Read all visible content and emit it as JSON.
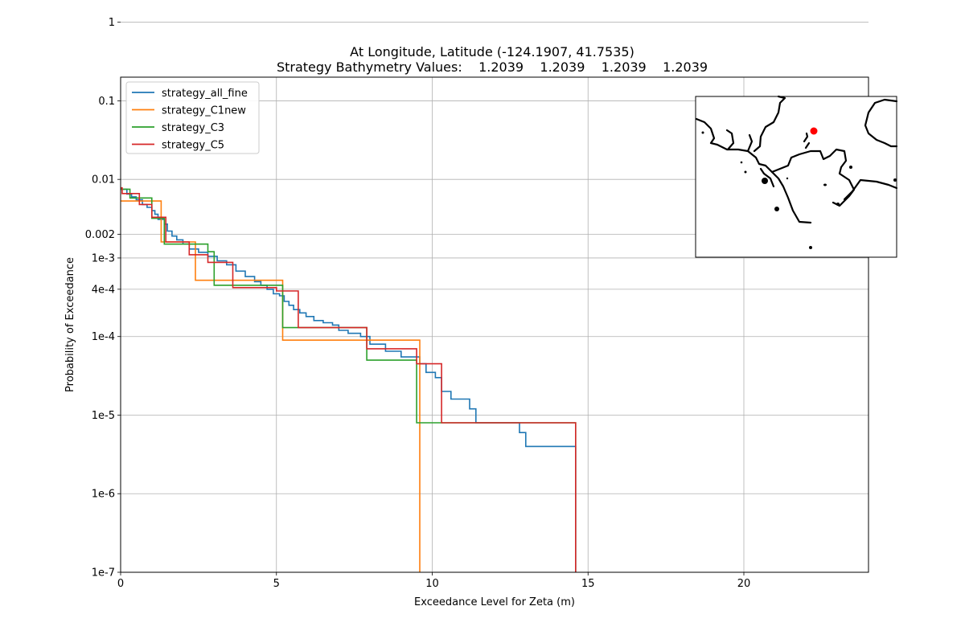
{
  "chart_data": {
    "type": "line",
    "title": "At Longitude, Latitude (-124.1907,  41.7535)",
    "subtitle": "Strategy Bathymetry Values:    1.2039    1.2039    1.2039    1.2039",
    "xlabel": "Exceedance Level for Zeta (m)",
    "ylabel": "Probability of Exceedance",
    "xlim": [
      0,
      24
    ],
    "ylim": [
      1e-07,
      0.2
    ],
    "yscale": "log",
    "grid": true,
    "legend_position": "top-left",
    "x_ticks": [
      {
        "value": 0,
        "label": "0"
      },
      {
        "value": 5,
        "label": "5"
      },
      {
        "value": 10,
        "label": "10"
      },
      {
        "value": 15,
        "label": "15"
      },
      {
        "value": 20,
        "label": "20"
      }
    ],
    "y_ticks": [
      {
        "value": 1,
        "label": "1"
      },
      {
        "value": 0.1,
        "label": "0.1"
      },
      {
        "value": 0.01,
        "label": "0.01"
      },
      {
        "value": 0.002,
        "label": "0.002"
      },
      {
        "value": 0.001,
        "label": "1e-3"
      },
      {
        "value": 0.0004,
        "label": "4e-4"
      },
      {
        "value": 0.0001,
        "label": "1e-4"
      },
      {
        "value": 1e-05,
        "label": "1e-5"
      },
      {
        "value": 1e-06,
        "label": "1e-6"
      },
      {
        "value": 1e-07,
        "label": "1e-7"
      }
    ],
    "series": [
      {
        "name": "strategy_all_fine",
        "color": "#1f77b4",
        "points": [
          [
            0,
            0.0075
          ],
          [
            0.2,
            0.0075
          ],
          [
            0.2,
            0.0065
          ],
          [
            0.35,
            0.0065
          ],
          [
            0.35,
            0.006
          ],
          [
            0.5,
            0.006
          ],
          [
            0.5,
            0.0055
          ],
          [
            0.7,
            0.0055
          ],
          [
            0.7,
            0.0048
          ],
          [
            0.85,
            0.0048
          ],
          [
            0.85,
            0.0044
          ],
          [
            1.0,
            0.0044
          ],
          [
            1.0,
            0.004
          ],
          [
            1.1,
            0.004
          ],
          [
            1.1,
            0.0036
          ],
          [
            1.2,
            0.0036
          ],
          [
            1.2,
            0.0031
          ],
          [
            1.4,
            0.0031
          ],
          [
            1.4,
            0.0027
          ],
          [
            1.5,
            0.0027
          ],
          [
            1.5,
            0.0022
          ],
          [
            1.65,
            0.0022
          ],
          [
            1.65,
            0.0019
          ],
          [
            1.8,
            0.0019
          ],
          [
            1.8,
            0.0017
          ],
          [
            2.0,
            0.0017
          ],
          [
            2.0,
            0.0015
          ],
          [
            2.2,
            0.0015
          ],
          [
            2.2,
            0.0013
          ],
          [
            2.5,
            0.0013
          ],
          [
            2.5,
            0.00118
          ],
          [
            2.8,
            0.00118
          ],
          [
            2.8,
            0.00105
          ],
          [
            3.1,
            0.00105
          ],
          [
            3.1,
            0.00092
          ],
          [
            3.4,
            0.00092
          ],
          [
            3.4,
            0.00082
          ],
          [
            3.7,
            0.00082
          ],
          [
            3.7,
            0.00068
          ],
          [
            4.0,
            0.00068
          ],
          [
            4.0,
            0.00058
          ],
          [
            4.3,
            0.00058
          ],
          [
            4.3,
            0.0005
          ],
          [
            4.5,
            0.0005
          ],
          [
            4.5,
            0.00045
          ],
          [
            4.7,
            0.00045
          ],
          [
            4.7,
            0.0004
          ],
          [
            4.9,
            0.0004
          ],
          [
            4.9,
            0.00035
          ],
          [
            5.1,
            0.00035
          ],
          [
            5.1,
            0.00033
          ],
          [
            5.25,
            0.00033
          ],
          [
            5.25,
            0.00028
          ],
          [
            5.4,
            0.00028
          ],
          [
            5.4,
            0.00025
          ],
          [
            5.55,
            0.00025
          ],
          [
            5.55,
            0.00022
          ],
          [
            5.75,
            0.00022
          ],
          [
            5.75,
            0.0002
          ],
          [
            5.95,
            0.0002
          ],
          [
            5.95,
            0.00018
          ],
          [
            6.2,
            0.00018
          ],
          [
            6.2,
            0.00016
          ],
          [
            6.5,
            0.00016
          ],
          [
            6.5,
            0.00015
          ],
          [
            6.8,
            0.00015
          ],
          [
            6.8,
            0.00014
          ],
          [
            7.0,
            0.00014
          ],
          [
            7.0,
            0.00012
          ],
          [
            7.3,
            0.00012
          ],
          [
            7.3,
            0.00011
          ],
          [
            7.7,
            0.00011
          ],
          [
            7.7,
            0.0001
          ],
          [
            8.0,
            0.0001
          ],
          [
            8.0,
            8e-05
          ],
          [
            8.5,
            8e-05
          ],
          [
            8.5,
            6.5e-05
          ],
          [
            9.0,
            6.5e-05
          ],
          [
            9.0,
            5.5e-05
          ],
          [
            9.6,
            5.5e-05
          ],
          [
            9.6,
            4.5e-05
          ],
          [
            9.8,
            4.5e-05
          ],
          [
            9.8,
            3.5e-05
          ],
          [
            10.1,
            3.5e-05
          ],
          [
            10.1,
            3e-05
          ],
          [
            10.3,
            3e-05
          ],
          [
            10.3,
            2e-05
          ],
          [
            10.6,
            2e-05
          ],
          [
            10.6,
            1.6e-05
          ],
          [
            11.2,
            1.6e-05
          ],
          [
            11.2,
            1.2e-05
          ],
          [
            11.4,
            1.2e-05
          ],
          [
            11.4,
            8e-06
          ],
          [
            12.8,
            8e-06
          ],
          [
            12.8,
            6e-06
          ],
          [
            13.0,
            6e-06
          ],
          [
            13.0,
            4e-06
          ],
          [
            14.6,
            4e-06
          ],
          [
            14.6,
            1e-07
          ]
        ]
      },
      {
        "name": "strategy_C1new",
        "color": "#ff7f0e",
        "points": [
          [
            0,
            0.0053
          ],
          [
            1.3,
            0.0053
          ],
          [
            1.3,
            0.0016
          ],
          [
            2.4,
            0.0016
          ],
          [
            2.4,
            0.00052
          ],
          [
            5.2,
            0.00052
          ],
          [
            5.2,
            9e-05
          ],
          [
            9.6,
            9e-05
          ],
          [
            9.6,
            1e-07
          ]
        ]
      },
      {
        "name": "strategy_C3",
        "color": "#2ca02c",
        "points": [
          [
            0,
            0.0075
          ],
          [
            0.3,
            0.0075
          ],
          [
            0.3,
            0.0058
          ],
          [
            1.0,
            0.0058
          ],
          [
            1.0,
            0.0032
          ],
          [
            1.4,
            0.0032
          ],
          [
            1.4,
            0.0015
          ],
          [
            2.8,
            0.0015
          ],
          [
            2.8,
            0.0012
          ],
          [
            3.0,
            0.0012
          ],
          [
            3.0,
            0.00045
          ],
          [
            5.2,
            0.00045
          ],
          [
            5.2,
            0.00013
          ],
          [
            7.9,
            0.00013
          ],
          [
            7.9,
            5e-05
          ],
          [
            9.5,
            5e-05
          ],
          [
            9.5,
            8e-06
          ],
          [
            14.6,
            8e-06
          ],
          [
            14.6,
            1e-07
          ]
        ]
      },
      {
        "name": "strategy_C5",
        "color": "#d62728",
        "points": [
          [
            0,
            0.0078
          ],
          [
            0.05,
            0.0078
          ],
          [
            0.05,
            0.0066
          ],
          [
            0.6,
            0.0066
          ],
          [
            0.6,
            0.0048
          ],
          [
            1.0,
            0.0048
          ],
          [
            1.0,
            0.0033
          ],
          [
            1.45,
            0.0033
          ],
          [
            1.45,
            0.0016
          ],
          [
            2.2,
            0.0016
          ],
          [
            2.2,
            0.0011
          ],
          [
            2.8,
            0.0011
          ],
          [
            2.8,
            0.00088
          ],
          [
            3.6,
            0.00088
          ],
          [
            3.6,
            0.00042
          ],
          [
            5.0,
            0.00042
          ],
          [
            5.0,
            0.00038
          ],
          [
            5.7,
            0.00038
          ],
          [
            5.7,
            0.00013
          ],
          [
            7.9,
            0.00013
          ],
          [
            7.9,
            7e-05
          ],
          [
            9.5,
            7e-05
          ],
          [
            9.5,
            4.5e-05
          ],
          [
            10.3,
            4.5e-05
          ],
          [
            10.3,
            8e-06
          ],
          [
            14.6,
            8e-06
          ],
          [
            14.6,
            1e-07
          ]
        ]
      }
    ]
  },
  "inset_map": {
    "marker_color": "#ff0000",
    "coastline_color": "#000000"
  }
}
